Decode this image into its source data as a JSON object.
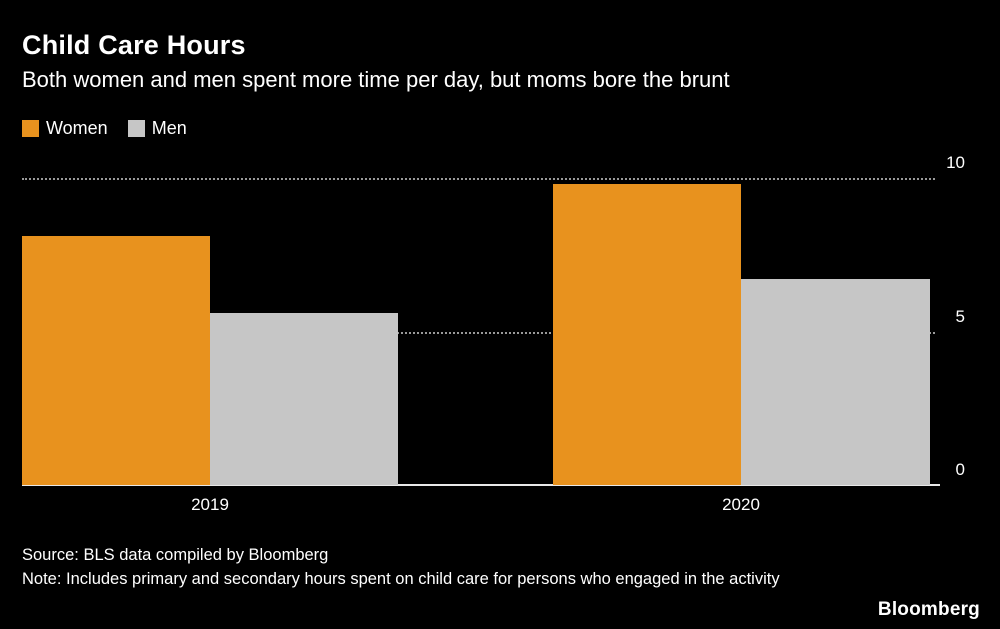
{
  "header": {
    "title": "Child Care Hours",
    "subtitle": "Both women and men spent more time per day, but moms bore the brunt"
  },
  "legend": [
    {
      "label": "Women",
      "color": "#e8921e"
    },
    {
      "label": "Men",
      "color": "#c6c6c6"
    }
  ],
  "chart_data": {
    "type": "bar",
    "title": "Child Care Hours",
    "subtitle": "Both women and men spent more time per day, but moms bore the brunt",
    "categories": [
      "2019",
      "2020"
    ],
    "series": [
      {
        "name": "Women",
        "color": "#e8921e",
        "values": [
          8.1,
          9.8
        ]
      },
      {
        "name": "Men",
        "color": "#c6c6c6",
        "values": [
          5.6,
          6.7
        ]
      }
    ],
    "xlabel": "",
    "ylabel": "",
    "ylim": [
      0,
      10
    ],
    "yticks": [
      0,
      5,
      10
    ],
    "grid": "horizontal-dotted",
    "legend_position": "top-left",
    "units": "hours per day"
  },
  "footer": {
    "source": "Source: BLS data compiled by Bloomberg",
    "note": "Note: Includes primary and secondary hours spent on child care for persons who engaged in the activity",
    "brand": "Bloomberg"
  },
  "colors": {
    "background": "#000000",
    "text": "#ffffff",
    "women": "#e8921e",
    "men": "#c6c6c6",
    "grid": "#9a9a9a",
    "axis": "#e8e8e8"
  }
}
